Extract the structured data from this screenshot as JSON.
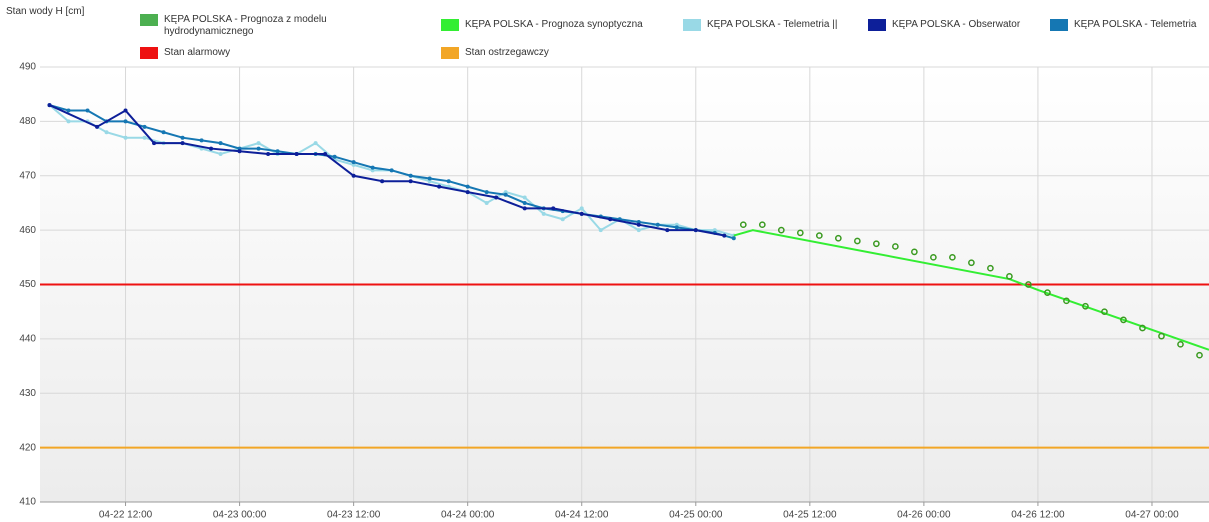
{
  "chart_data": {
    "type": "line",
    "y_axis_label": "Stan wody H [cm]",
    "xlim": [
      "04-22 03:00",
      "04-27 06:00"
    ],
    "xticks": [
      "04-22 12:00",
      "04-23 00:00",
      "04-23 12:00",
      "04-24 00:00",
      "04-24 12:00",
      "04-25 00:00",
      "04-25 12:00",
      "04-26 00:00",
      "04-26 12:00",
      "04-27 00:00"
    ],
    "ylim": [
      410,
      490
    ],
    "yticks": [
      410,
      420,
      430,
      440,
      450,
      460,
      470,
      480,
      490
    ],
    "grid": true,
    "series": [
      {
        "name": "KĘPA POLSKA - Prognoza z modelu hydrodynamicznego",
        "color": "#4caf50",
        "style": "markers",
        "x": [
          "04-25 05:00",
          "04-25 07:00",
          "04-25 09:00",
          "04-25 11:00",
          "04-25 13:00",
          "04-25 15:00",
          "04-25 17:00",
          "04-25 19:00",
          "04-25 21:00",
          "04-25 23:00",
          "04-26 01:00",
          "04-26 03:00",
          "04-26 05:00",
          "04-26 07:00",
          "04-26 09:00",
          "04-26 11:00",
          "04-26 13:00",
          "04-26 15:00",
          "04-26 17:00",
          "04-26 19:00",
          "04-26 21:00",
          "04-26 23:00",
          "04-27 01:00",
          "04-27 03:00",
          "04-27 05:00"
        ],
        "values": [
          461,
          461,
          460,
          459.5,
          459,
          458.5,
          458,
          457.5,
          457,
          456,
          455,
          455,
          454,
          453,
          451.5,
          450,
          448.5,
          447,
          446,
          445,
          443.5,
          442,
          440.5,
          439,
          437
        ]
      },
      {
        "name": "KĘPA POLSKA - Prognoza synoptyczna",
        "color": "#33ee33",
        "style": "line",
        "x": [
          "04-25 04:00",
          "04-25 06:00",
          "04-26 09:00",
          "04-26 12:00",
          "04-27 06:00"
        ],
        "values": [
          459,
          460,
          451,
          449,
          438
        ]
      },
      {
        "name": "KĘPA POLSKA - Telemetria ||",
        "color": "#99d9e6",
        "style": "line",
        "x": [
          "04-22 04:00",
          "04-22 06:00",
          "04-22 08:00",
          "04-22 10:00",
          "04-22 12:00",
          "04-22 14:00",
          "04-22 16:00",
          "04-22 18:00",
          "04-22 20:00",
          "04-22 22:00",
          "04-23 00:00",
          "04-23 02:00",
          "04-23 04:00",
          "04-23 06:00",
          "04-23 08:00",
          "04-23 10:00",
          "04-23 12:00",
          "04-23 14:00",
          "04-23 16:00",
          "04-23 18:00",
          "04-23 20:00",
          "04-23 22:00",
          "04-24 00:00",
          "04-24 02:00",
          "04-24 04:00",
          "04-24 06:00",
          "04-24 08:00",
          "04-24 10:00",
          "04-24 12:00",
          "04-24 14:00",
          "04-24 16:00",
          "04-24 18:00",
          "04-24 20:00",
          "04-24 22:00",
          "04-25 00:00",
          "04-25 02:00",
          "04-25 04:00"
        ],
        "values": [
          483,
          480,
          480,
          478,
          477,
          477,
          476,
          476,
          475,
          474,
          475,
          476,
          474,
          474,
          476,
          473,
          472,
          471,
          471,
          470,
          469,
          468,
          467,
          465,
          467,
          466,
          463,
          462,
          464,
          460,
          462,
          460,
          461,
          461,
          460,
          460,
          459
        ]
      },
      {
        "name": "KĘPA POLSKA - Obserwator",
        "color": "#0d1f99",
        "style": "line",
        "x": [
          "04-22 04:00",
          "04-22 09:00",
          "04-22 12:00",
          "04-22 15:00",
          "04-22 18:00",
          "04-22 21:00",
          "04-23 00:00",
          "04-23 03:00",
          "04-23 06:00",
          "04-23 09:00",
          "04-23 12:00",
          "04-23 15:00",
          "04-23 18:00",
          "04-23 21:00",
          "04-24 00:00",
          "04-24 03:00",
          "04-24 06:00",
          "04-24 09:00",
          "04-24 12:00",
          "04-24 15:00",
          "04-24 18:00",
          "04-24 21:00",
          "04-25 00:00",
          "04-25 03:00"
        ],
        "values": [
          483,
          479,
          482,
          476,
          476,
          475,
          474.5,
          474,
          474,
          474,
          470,
          469,
          469,
          468,
          467,
          466,
          464,
          464,
          463,
          462,
          461,
          460,
          460,
          459
        ]
      },
      {
        "name": "KĘPA POLSKA - Telemetria",
        "color": "#1577b3",
        "style": "line",
        "x": [
          "04-22 04:00",
          "04-22 06:00",
          "04-22 08:00",
          "04-22 10:00",
          "04-22 12:00",
          "04-22 14:00",
          "04-22 16:00",
          "04-22 18:00",
          "04-22 20:00",
          "04-22 22:00",
          "04-23 00:00",
          "04-23 02:00",
          "04-23 04:00",
          "04-23 06:00",
          "04-23 08:00",
          "04-23 10:00",
          "04-23 12:00",
          "04-23 14:00",
          "04-23 16:00",
          "04-23 18:00",
          "04-23 20:00",
          "04-23 22:00",
          "04-24 00:00",
          "04-24 02:00",
          "04-24 04:00",
          "04-24 06:00",
          "04-24 08:00",
          "04-24 10:00",
          "04-24 12:00",
          "04-24 14:00",
          "04-24 16:00",
          "04-24 18:00",
          "04-24 20:00",
          "04-24 22:00",
          "04-25 00:00",
          "04-25 02:00",
          "04-25 04:00"
        ],
        "values": [
          483,
          482,
          482,
          480,
          480,
          479,
          478,
          477,
          476.5,
          476,
          475,
          475,
          474.5,
          474,
          474,
          473.5,
          472.5,
          471.5,
          471,
          470,
          469.5,
          469,
          468,
          467,
          466.5,
          465,
          464,
          463.5,
          463,
          462.5,
          462,
          461.5,
          461,
          460.5,
          460,
          459.5,
          458.5
        ]
      },
      {
        "name": "Stan alarmowy",
        "color": "#ee1111",
        "style": "line",
        "x": [
          "04-22 03:00",
          "04-27 06:00"
        ],
        "values": [
          450,
          450
        ]
      },
      {
        "name": "Stan ostrzegawczy",
        "color": "#f2a626",
        "style": "line",
        "x": [
          "04-22 03:00",
          "04-27 06:00"
        ],
        "values": [
          420,
          420
        ]
      }
    ]
  }
}
